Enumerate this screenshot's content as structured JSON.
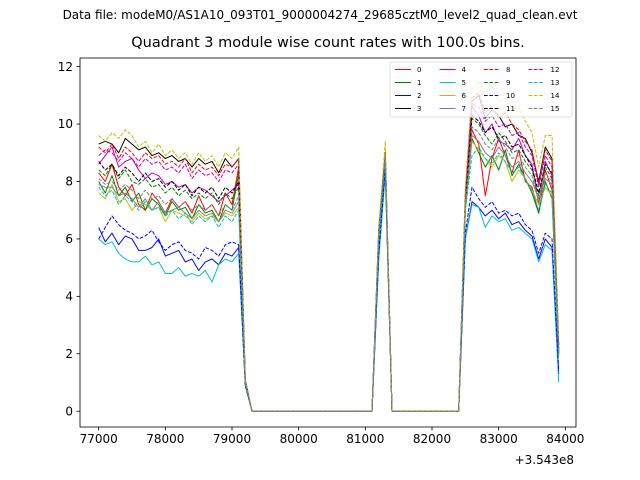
{
  "suptitle": "Data file: modeM0/AS1A10_093T01_9000004274_29685cztM0_level2_quad_clean.evt",
  "chart_data": {
    "type": "line",
    "title": "Quadrant 3 module wise count rates with 100.0s bins.",
    "xlabel": "",
    "ylabel": "",
    "x_offset_label": "+3.543e8",
    "xlim": [
      76720,
      84160
    ],
    "ylim": [
      -0.55,
      12.3
    ],
    "xticks": [
      77000,
      78000,
      79000,
      80000,
      81000,
      82000,
      83000,
      84000
    ],
    "xtick_labels": [
      "77000",
      "78000",
      "79000",
      "80000",
      "81000",
      "82000",
      "83000",
      "84000"
    ],
    "yticks": [
      0,
      2,
      4,
      6,
      8,
      10,
      12
    ],
    "ytick_labels": [
      "0",
      "2",
      "4",
      "6",
      "8",
      "10",
      "12"
    ],
    "x": [
      77000,
      77100,
      77200,
      77300,
      77400,
      77500,
      77600,
      77700,
      77800,
      77900,
      78000,
      78100,
      78200,
      78300,
      78400,
      78500,
      78600,
      78700,
      78800,
      78900,
      79000,
      79100,
      79200,
      79300,
      79400,
      79500,
      79600,
      79700,
      79800,
      79900,
      80000,
      80100,
      80200,
      80300,
      80400,
      80500,
      80600,
      80700,
      80800,
      80900,
      81000,
      81100,
      81200,
      81300,
      81400,
      81500,
      81600,
      81700,
      81800,
      81900,
      82000,
      82100,
      82200,
      82300,
      82400,
      82500,
      82600,
      82700,
      82800,
      82900,
      83000,
      83100,
      83200,
      83300,
      83400,
      83500,
      83600,
      83700,
      83800,
      83900
    ],
    "series": [
      {
        "name": "0",
        "color": "#ff0000",
        "dash": "solid",
        "values": [
          8.3,
          8.0,
          8.6,
          7.8,
          7.5,
          7.9,
          7.2,
          7.0,
          7.6,
          7.3,
          6.9,
          7.4,
          7.1,
          7.3,
          6.9,
          7.5,
          7.0,
          7.2,
          6.8,
          7.6,
          7.2,
          8.5,
          1.0,
          0,
          0,
          0,
          0,
          0,
          0,
          0,
          0,
          0,
          0,
          0,
          0,
          0,
          0,
          0,
          0,
          0,
          0,
          0,
          6.0,
          8.9,
          0,
          0,
          0,
          0,
          0,
          0,
          0,
          0,
          0,
          0,
          0,
          7.0,
          9.8,
          9.3,
          7.5,
          8.8,
          9.5,
          8.9,
          8.3,
          9.1,
          8.0,
          7.8,
          6.9,
          8.4,
          7.7,
          2.0
        ]
      },
      {
        "name": "1",
        "color": "#008000",
        "dash": "solid",
        "values": [
          8.0,
          7.6,
          8.2,
          7.5,
          7.8,
          7.3,
          7.6,
          7.0,
          7.4,
          7.2,
          6.8,
          7.3,
          7.0,
          7.1,
          6.7,
          7.2,
          6.9,
          7.0,
          6.6,
          7.2,
          7.0,
          8.3,
          1.0,
          0,
          0,
          0,
          0,
          0,
          0,
          0,
          0,
          0,
          0,
          0,
          0,
          0,
          0,
          0,
          0,
          0,
          0,
          0,
          6.0,
          8.8,
          0,
          0,
          0,
          0,
          0,
          0,
          0,
          0,
          0,
          0,
          0,
          7.0,
          9.5,
          9.0,
          8.5,
          8.9,
          8.4,
          9.1,
          8.2,
          8.6,
          8.1,
          7.6,
          6.9,
          8.0,
          7.4,
          2.0
        ]
      },
      {
        "name": "2",
        "color": "#0000ff",
        "dash": "solid",
        "values": [
          6.4,
          5.9,
          6.2,
          5.8,
          6.1,
          6.0,
          5.6,
          5.6,
          5.7,
          6.0,
          5.4,
          5.5,
          5.6,
          5.2,
          5.3,
          4.9,
          5.2,
          5.3,
          5.1,
          5.5,
          5.4,
          5.7,
          0.9,
          0,
          0,
          0,
          0,
          0,
          0,
          0,
          0,
          0,
          0,
          0,
          0,
          0,
          0,
          0,
          0,
          0,
          0,
          0,
          5.3,
          8.4,
          0,
          0,
          0,
          0,
          0,
          0,
          0,
          0,
          0,
          0,
          0,
          6.0,
          7.3,
          7.1,
          6.8,
          7.0,
          6.7,
          6.9,
          6.5,
          6.6,
          6.3,
          6.1,
          5.3,
          6.0,
          5.7,
          1.3
        ]
      },
      {
        "name": "3",
        "color": "#000000",
        "dash": "solid",
        "values": [
          9.3,
          9.4,
          9.3,
          9.0,
          9.5,
          9.3,
          9.1,
          9.2,
          8.9,
          9.0,
          8.8,
          8.9,
          8.7,
          8.8,
          8.5,
          8.8,
          8.6,
          8.7,
          8.3,
          8.8,
          8.5,
          8.8,
          1.1,
          0,
          0,
          0,
          0,
          0,
          0,
          0,
          0,
          0,
          0,
          0,
          0,
          0,
          0,
          0,
          0,
          0,
          0,
          0,
          6.3,
          9.0,
          0,
          0,
          0,
          0,
          0,
          0,
          0,
          0,
          0,
          0,
          0,
          7.5,
          10.8,
          11.0,
          10.2,
          10.5,
          10.3,
          9.9,
          10.0,
          9.6,
          9.5,
          9.0,
          8.0,
          9.2,
          8.8,
          2.3
        ]
      },
      {
        "name": "4",
        "color": "#bf00bf",
        "dash": "solid",
        "values": [
          8.6,
          8.9,
          9.2,
          8.5,
          8.7,
          8.8,
          8.4,
          8.1,
          8.3,
          8.2,
          7.9,
          8.0,
          7.8,
          7.9,
          7.6,
          7.8,
          7.7,
          7.5,
          7.3,
          7.5,
          7.7,
          7.9,
          1.0,
          0,
          0,
          0,
          0,
          0,
          0,
          0,
          0,
          0,
          0,
          0,
          0,
          0,
          0,
          0,
          0,
          0,
          0,
          0,
          6.2,
          8.9,
          0,
          0,
          0,
          0,
          0,
          0,
          0,
          0,
          0,
          0,
          0,
          7.2,
          10.6,
          10.3,
          9.7,
          10.0,
          9.4,
          9.3,
          9.1,
          9.5,
          8.9,
          8.6,
          7.2,
          8.7,
          8.2,
          2.1
        ]
      },
      {
        "name": "5",
        "color": "#00bfbf",
        "dash": "solid",
        "values": [
          6.0,
          5.8,
          5.9,
          5.5,
          5.3,
          5.2,
          5.2,
          5.4,
          5.1,
          5.2,
          4.8,
          4.8,
          5.0,
          4.7,
          4.8,
          4.7,
          4.9,
          4.5,
          5.1,
          5.3,
          5.2,
          5.5,
          0.9,
          0,
          0,
          0,
          0,
          0,
          0,
          0,
          0,
          0,
          0,
          0,
          0,
          0,
          0,
          0,
          0,
          0,
          0,
          0,
          5.3,
          8.3,
          0,
          0,
          0,
          0,
          0,
          0,
          0,
          0,
          0,
          0,
          0,
          6.0,
          7.2,
          7.1,
          6.4,
          6.8,
          6.6,
          6.7,
          6.3,
          6.4,
          6.2,
          6.0,
          5.2,
          5.8,
          5.6,
          1.0
        ]
      },
      {
        "name": "6",
        "color": "#bfbf00",
        "dash": "solid",
        "values": [
          7.6,
          7.4,
          7.9,
          7.3,
          7.4,
          7.0,
          7.3,
          7.2,
          7.0,
          7.1,
          6.6,
          7.0,
          6.9,
          6.8,
          6.6,
          6.9,
          6.7,
          6.8,
          6.6,
          6.9,
          6.8,
          7.1,
          1.0,
          0,
          0,
          0,
          0,
          0,
          0,
          0,
          0,
          0,
          0,
          0,
          0,
          0,
          0,
          0,
          0,
          0,
          0,
          0,
          6.0,
          8.9,
          0,
          0,
          0,
          0,
          0,
          0,
          0,
          0,
          0,
          0,
          0,
          7.0,
          9.4,
          9.1,
          8.8,
          8.5,
          8.9,
          8.7,
          8.0,
          8.4,
          8.1,
          7.7,
          7.2,
          7.8,
          7.5,
          2.0
        ]
      },
      {
        "name": "7",
        "color": "#808080",
        "dash": "solid",
        "values": [
          7.9,
          7.8,
          7.8,
          7.5,
          7.6,
          7.4,
          7.1,
          7.4,
          7.0,
          7.3,
          6.9,
          7.0,
          7.1,
          6.9,
          6.7,
          7.0,
          6.8,
          6.9,
          6.6,
          7.0,
          6.9,
          7.3,
          1.0,
          0,
          0,
          0,
          0,
          0,
          0,
          0,
          0,
          0,
          0,
          0,
          0,
          0,
          0,
          0,
          0,
          0,
          0,
          0,
          6.0,
          8.9,
          0,
          0,
          0,
          0,
          0,
          0,
          0,
          0,
          0,
          0,
          0,
          7.0,
          9.6,
          9.4,
          9.0,
          8.8,
          9.2,
          8.9,
          8.5,
          8.7,
          8.3,
          8.0,
          7.4,
          8.1,
          7.9,
          2.0
        ]
      },
      {
        "name": "8",
        "color": "#ff0000",
        "dash": "dashed",
        "values": [
          9.2,
          9.0,
          9.3,
          8.8,
          9.2,
          9.0,
          8.7,
          9.0,
          8.8,
          8.9,
          8.6,
          8.7,
          8.5,
          8.8,
          8.3,
          8.6,
          8.4,
          8.5,
          8.2,
          8.6,
          8.5,
          8.8,
          1.1,
          0,
          0,
          0,
          0,
          0,
          0,
          0,
          0,
          0,
          0,
          0,
          0,
          0,
          0,
          0,
          0,
          0,
          0,
          0,
          6.2,
          9.0,
          0,
          0,
          0,
          0,
          0,
          0,
          0,
          0,
          0,
          0,
          0,
          7.5,
          10.9,
          11.1,
          10.4,
          10.6,
          10.2,
          10.4,
          10.0,
          9.8,
          9.4,
          9.1,
          7.9,
          9.1,
          8.7,
          2.3
        ]
      },
      {
        "name": "9",
        "color": "#008000",
        "dash": "dashed",
        "values": [
          8.4,
          8.2,
          8.6,
          8.1,
          8.4,
          8.0,
          7.9,
          8.1,
          7.8,
          7.9,
          7.6,
          7.8,
          7.5,
          7.7,
          7.4,
          7.6,
          7.4,
          7.6,
          7.2,
          7.6,
          7.4,
          7.8,
          1.0,
          0,
          0,
          0,
          0,
          0,
          0,
          0,
          0,
          0,
          0,
          0,
          0,
          0,
          0,
          0,
          0,
          0,
          0,
          0,
          6.1,
          8.9,
          0,
          0,
          0,
          0,
          0,
          0,
          0,
          0,
          0,
          0,
          0,
          7.2,
          10.2,
          10.0,
          9.6,
          9.3,
          9.7,
          9.4,
          9.0,
          9.1,
          8.7,
          8.4,
          7.5,
          8.5,
          8.1,
          2.1
        ]
      },
      {
        "name": "10",
        "color": "#0000ff",
        "dash": "dashed",
        "values": [
          6.0,
          6.4,
          6.8,
          6.5,
          6.3,
          6.2,
          6.0,
          6.1,
          6.3,
          5.9,
          5.6,
          5.8,
          5.9,
          5.6,
          5.5,
          5.3,
          5.7,
          5.6,
          5.4,
          5.8,
          5.9,
          5.8,
          0.9,
          0,
          0,
          0,
          0,
          0,
          0,
          0,
          0,
          0,
          0,
          0,
          0,
          0,
          0,
          0,
          0,
          0,
          0,
          0,
          5.5,
          8.5,
          0,
          0,
          0,
          0,
          0,
          0,
          0,
          0,
          0,
          0,
          0,
          6.2,
          7.8,
          7.4,
          7.1,
          7.3,
          6.9,
          7.0,
          6.8,
          6.9,
          6.5,
          6.3,
          5.5,
          6.2,
          6.0,
          1.4
        ]
      },
      {
        "name": "11",
        "color": "#000000",
        "dash": "dashed",
        "values": [
          8.7,
          8.4,
          8.6,
          8.2,
          8.5,
          8.3,
          8.0,
          8.3,
          8.0,
          8.1,
          7.8,
          8.0,
          7.7,
          7.9,
          7.5,
          7.8,
          7.6,
          7.8,
          7.4,
          7.8,
          7.6,
          8.0,
          1.0,
          0,
          0,
          0,
          0,
          0,
          0,
          0,
          0,
          0,
          0,
          0,
          0,
          0,
          0,
          0,
          0,
          0,
          0,
          0,
          6.1,
          8.9,
          0,
          0,
          0,
          0,
          0,
          0,
          0,
          0,
          0,
          0,
          0,
          7.3,
          10.3,
          10.1,
          9.7,
          9.9,
          9.5,
          9.6,
          9.2,
          9.3,
          8.9,
          8.5,
          7.6,
          8.6,
          8.3,
          2.1
        ]
      },
      {
        "name": "12",
        "color": "#bf00bf",
        "dash": "dashed",
        "values": [
          8.9,
          9.1,
          9.0,
          8.7,
          9.0,
          8.8,
          8.5,
          8.8,
          8.6,
          8.7,
          8.4,
          8.5,
          8.3,
          8.6,
          8.1,
          8.4,
          8.2,
          8.3,
          8.0,
          8.4,
          8.3,
          8.6,
          1.0,
          0,
          0,
          0,
          0,
          0,
          0,
          0,
          0,
          0,
          0,
          0,
          0,
          0,
          0,
          0,
          0,
          0,
          0,
          0,
          6.2,
          9.0,
          0,
          0,
          0,
          0,
          0,
          0,
          0,
          0,
          0,
          0,
          0,
          7.4,
          10.7,
          10.6,
          10.1,
          10.3,
          9.9,
          10.0,
          9.6,
          9.7,
          9.2,
          8.9,
          7.8,
          8.9,
          8.5,
          2.2
        ]
      },
      {
        "name": "13",
        "color": "#00bfbf",
        "dash": "dashed",
        "values": [
          7.8,
          7.5,
          7.7,
          7.2,
          7.5,
          7.3,
          7.0,
          7.3,
          7.0,
          7.1,
          6.8,
          7.0,
          6.7,
          6.9,
          6.5,
          6.8,
          6.6,
          6.8,
          6.4,
          6.8,
          6.6,
          7.0,
          1.0,
          0,
          0,
          0,
          0,
          0,
          0,
          0,
          0,
          0,
          0,
          0,
          0,
          0,
          0,
          0,
          0,
          0,
          0,
          0,
          6.0,
          8.8,
          0,
          0,
          0,
          0,
          0,
          0,
          0,
          0,
          0,
          0,
          0,
          7.0,
          8.9,
          9.2,
          8.8,
          8.6,
          9.0,
          8.7,
          8.3,
          8.5,
          8.1,
          7.7,
          7.0,
          7.9,
          7.6,
          1.9
        ]
      },
      {
        "name": "14",
        "color": "#bfbf00",
        "dash": "dashed",
        "values": [
          9.6,
          9.4,
          9.7,
          9.5,
          9.8,
          9.6,
          9.2,
          9.4,
          9.0,
          9.3,
          8.9,
          9.1,
          8.8,
          9.0,
          8.6,
          9.0,
          8.7,
          8.9,
          8.5,
          9.0,
          8.8,
          9.2,
          1.1,
          0,
          0,
          0,
          0,
          0,
          0,
          0,
          0,
          0,
          0,
          0,
          0,
          0,
          0,
          0,
          0,
          0,
          0,
          0,
          6.4,
          9.4,
          0,
          0,
          0,
          0,
          0,
          0,
          0,
          0,
          0,
          0,
          0,
          7.8,
          11.2,
          11.5,
          11.0,
          11.3,
          10.8,
          10.9,
          10.5,
          10.6,
          10.1,
          9.7,
          8.5,
          9.6,
          9.6,
          2.6
        ]
      },
      {
        "name": "15",
        "color": "#808080",
        "dash": "dashed",
        "values": [
          8.1,
          7.9,
          8.0,
          7.7,
          7.9,
          7.7,
          7.4,
          7.7,
          7.4,
          7.5,
          7.2,
          7.4,
          7.1,
          7.3,
          7.0,
          7.2,
          7.0,
          7.2,
          6.8,
          7.2,
          7.0,
          7.5,
          1.0,
          0,
          0,
          0,
          0,
          0,
          0,
          0,
          0,
          0,
          0,
          0,
          0,
          0,
          0,
          0,
          0,
          0,
          0,
          0,
          6.1,
          8.9,
          0,
          0,
          0,
          0,
          0,
          0,
          0,
          0,
          0,
          0,
          0,
          7.1,
          9.9,
          9.7,
          9.3,
          9.1,
          9.5,
          9.2,
          8.8,
          8.9,
          8.5,
          8.2,
          7.3,
          8.3,
          8.0,
          2.0
        ]
      }
    ]
  }
}
